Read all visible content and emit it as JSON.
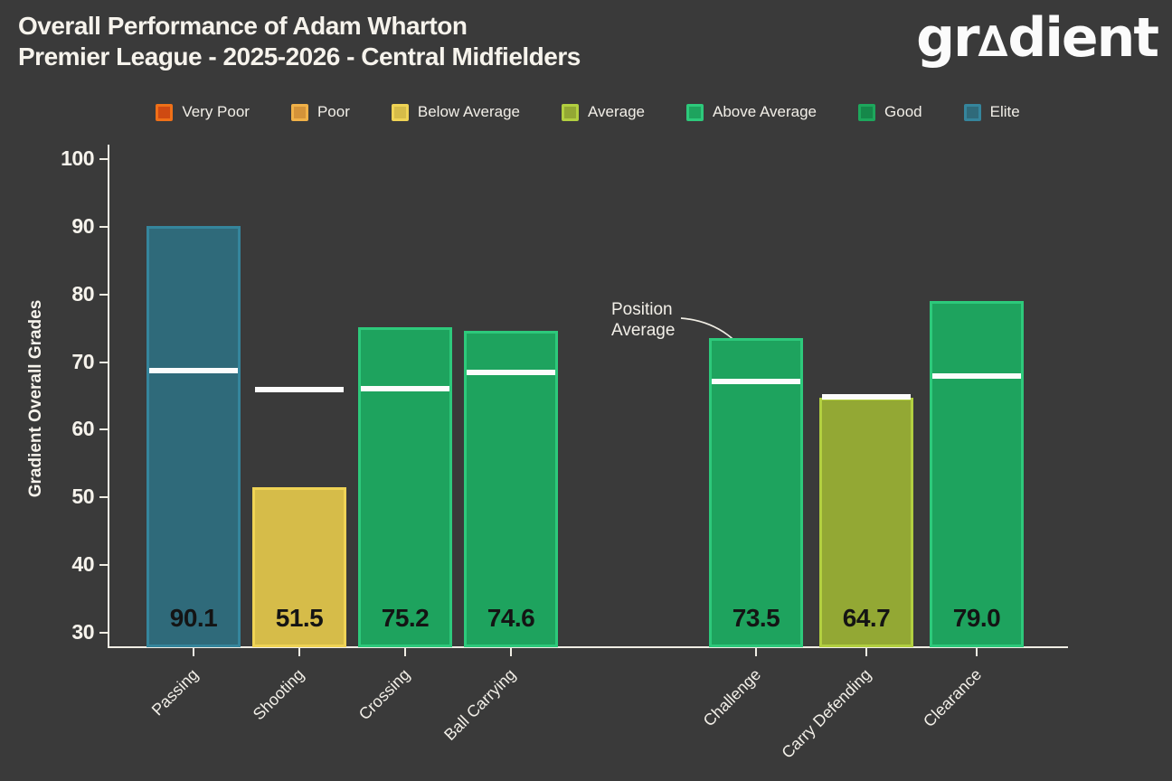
{
  "header": {
    "title_line1": "Overall Performance of Adam Wharton",
    "title_line2": "Premier League - 2025-2026 - Central Midfielders",
    "brand": {
      "prefix": "gr",
      "triangle": "∆",
      "suffix": "dient"
    }
  },
  "colors": {
    "background": "#3a3a3a",
    "text": "#f5f2ea",
    "axis": "#f0ede4",
    "bar_value_label": "#141414",
    "average_line": "#fcfcfc"
  },
  "legend": [
    {
      "label": "Very Poor",
      "fill": "#cf4a12",
      "edge": "#ef7018"
    },
    {
      "label": "Poor",
      "fill": "#d49339",
      "edge": "#f0b148"
    },
    {
      "label": "Below Average",
      "fill": "#d6bc49",
      "edge": "#efd355"
    },
    {
      "label": "Average",
      "fill": "#93a834",
      "edge": "#b2cf40"
    },
    {
      "label": "Above Average",
      "fill": "#1ea35e",
      "edge": "#2dc97b"
    },
    {
      "label": "Good",
      "fill": "#15884a",
      "edge": "#1da75c"
    },
    {
      "label": "Elite",
      "fill": "#2f6a7a",
      "edge": "#35859c"
    }
  ],
  "chart_data": {
    "type": "bar",
    "title": "Overall Performance of Adam Wharton",
    "subtitle": "Premier League - 2025-2026 - Central Midfielders",
    "xlabel": "",
    "ylabel": "Gradient Overall Grades",
    "ylim": [
      30,
      103
    ],
    "yticks": [
      30,
      40,
      50,
      60,
      70,
      80,
      90,
      100
    ],
    "grid": false,
    "legend_position": "top",
    "categories": [
      "Passing",
      "Shooting",
      "Crossing",
      "Ball Carrying",
      "Challenge",
      "Carry Defending",
      "Clearance"
    ],
    "values": [
      90.1,
      51.5,
      75.2,
      74.6,
      73.5,
      64.7,
      79.0
    ],
    "grades": [
      "Elite",
      "Below Average",
      "Above Average",
      "Above Average",
      "Above Average",
      "Average",
      "Above Average"
    ],
    "position_averages": [
      68.7,
      66.0,
      66.1,
      68.5,
      67.2,
      64.9,
      67.9
    ],
    "empty_slot_between": [
      "Ball Carrying",
      "Challenge"
    ],
    "annotation": {
      "line1": "Position",
      "line2": "Average",
      "points_to": "Challenge"
    }
  }
}
